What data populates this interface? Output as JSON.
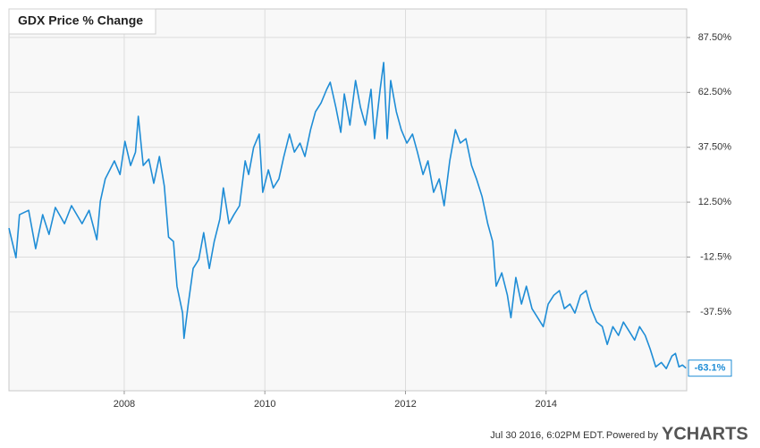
{
  "chart_data": {
    "type": "line",
    "title": "GDX Price % Change",
    "x": [
      2006.36,
      2006.46,
      2006.51,
      2006.64,
      2006.74,
      2006.84,
      2006.93,
      2007.02,
      2007.15,
      2007.25,
      2007.4,
      2007.5,
      2007.61,
      2007.66,
      2007.73,
      2007.86,
      2007.94,
      2008.01,
      2008.09,
      2008.16,
      2008.2,
      2008.27,
      2008.35,
      2008.42,
      2008.5,
      2008.57,
      2008.63,
      2008.7,
      2008.75,
      2008.83,
      2008.85,
      2008.91,
      2008.98,
      2009.06,
      2009.13,
      2009.21,
      2009.28,
      2009.36,
      2009.41,
      2009.49,
      2009.56,
      2009.64,
      2009.72,
      2009.77,
      2009.84,
      2009.92,
      2009.97,
      2010.05,
      2010.12,
      2010.2,
      2010.27,
      2010.35,
      2010.42,
      2010.5,
      2010.57,
      2010.65,
      2010.72,
      2010.8,
      2010.88,
      2010.93,
      2011.01,
      2011.08,
      2011.13,
      2011.21,
      2011.29,
      2011.36,
      2011.43,
      2011.51,
      2011.56,
      2011.64,
      2011.69,
      2011.74,
      2011.79,
      2011.87,
      2011.94,
      2012.02,
      2012.1,
      2012.17,
      2012.25,
      2012.32,
      2012.4,
      2012.48,
      2012.55,
      2012.63,
      2012.71,
      2012.78,
      2012.86,
      2012.94,
      2013.01,
      2013.09,
      2013.17,
      2013.24,
      2013.29,
      2013.37,
      2013.45,
      2013.5,
      2013.57,
      2013.65,
      2013.72,
      2013.8,
      2013.88,
      2013.96,
      2014.03,
      2014.11,
      2014.19,
      2014.26,
      2014.34,
      2014.41,
      2014.49,
      2014.57,
      2014.64,
      2014.72,
      2014.8,
      2014.87,
      2014.95,
      2015.03,
      2015.1,
      2015.18,
      2015.26,
      2015.33,
      2015.41,
      2015.48,
      2015.56,
      2015.64,
      2015.71,
      2015.79,
      2015.84,
      2015.89,
      2015.94,
      2015.99
    ],
    "series": [
      {
        "name": "GDX",
        "color": "#1f8dd6",
        "values": [
          0.7,
          -12.8,
          6.8,
          8.8,
          -8.7,
          6.8,
          -2.2,
          10.1,
          2.7,
          10.9,
          2.7,
          8.8,
          -4.6,
          12.9,
          23.1,
          31.3,
          25.1,
          40.2,
          29.2,
          35.3,
          51.6,
          29.2,
          32.1,
          21.1,
          33.3,
          19.8,
          -3.4,
          -5.4,
          -25.8,
          -38.0,
          -49.5,
          -34.0,
          -17.7,
          -13.6,
          -1.4,
          -17.7,
          -5.4,
          4.8,
          19.0,
          2.7,
          6.8,
          10.9,
          31.3,
          25.1,
          37.4,
          43.5,
          17.0,
          27.2,
          19.0,
          23.1,
          33.3,
          43.5,
          35.3,
          39.4,
          33.3,
          45.5,
          53.7,
          57.7,
          63.9,
          67.1,
          55.7,
          44.3,
          61.8,
          47.6,
          67.9,
          55.7,
          47.6,
          63.9,
          41.4,
          63.9,
          76.1,
          41.4,
          67.9,
          53.7,
          45.5,
          39.4,
          43.5,
          35.3,
          25.1,
          31.3,
          17.0,
          23.1,
          10.9,
          31.3,
          45.5,
          39.4,
          41.4,
          29.2,
          23.1,
          15.0,
          2.7,
          -5.4,
          -25.8,
          -19.7,
          -29.9,
          -40.1,
          -21.8,
          -33.9,
          -25.8,
          -36.0,
          -40.1,
          -44.2,
          -33.9,
          -29.9,
          -27.8,
          -36.0,
          -33.9,
          -38.0,
          -29.9,
          -27.8,
          -36.0,
          -42.1,
          -44.2,
          -52.3,
          -44.2,
          -48.2,
          -42.1,
          -46.2,
          -50.3,
          -44.2,
          -48.2,
          -54.3,
          -62.5,
          -60.5,
          -63.3,
          -57.6,
          -56.4,
          -62.5,
          -61.7,
          -63.1
        ],
        "value_labels": [
          null,
          null,
          null,
          null,
          null,
          null,
          null,
          null,
          null,
          null,
          null,
          null,
          null,
          null,
          null,
          null,
          null,
          null,
          null,
          null,
          null,
          null,
          null,
          null,
          null,
          null,
          null,
          null,
          null,
          null,
          null,
          null,
          null,
          null,
          null,
          null,
          null,
          null,
          null,
          null,
          null,
          null,
          null,
          null,
          null,
          null,
          null,
          null,
          null,
          null,
          null,
          null,
          null,
          null,
          null,
          null,
          null,
          null,
          null,
          null,
          null,
          null,
          null,
          null,
          null,
          null,
          null,
          null,
          null,
          null,
          null,
          null,
          null,
          null,
          null,
          null,
          null,
          null,
          null,
          null,
          null,
          null,
          null,
          null,
          null,
          null,
          null,
          null,
          null,
          null,
          null,
          null,
          null,
          null,
          null,
          null,
          null,
          null,
          null,
          null,
          null,
          null,
          null,
          null,
          null,
          null,
          null,
          null,
          null,
          null,
          null,
          null,
          null,
          null,
          null,
          null,
          null,
          null,
          null,
          null,
          null,
          null,
          null,
          null,
          null,
          null,
          null,
          null,
          null,
          "-63.1%"
        ]
      }
    ],
    "xlim": [
      2006.36,
      2016.0
    ],
    "xticks": [
      2008,
      2010,
      2012,
      2014
    ],
    "ylim": [
      -73.4,
      100.5
    ],
    "yticks": [
      {
        "value": 87.5,
        "label": "87.50%"
      },
      {
        "value": 62.5,
        "label": "62.50%"
      },
      {
        "value": 37.5,
        "label": "37.50%"
      },
      {
        "value": 12.5,
        "label": "12.50%"
      },
      {
        "value": -12.5,
        "label": "-12.5%"
      },
      {
        "value": -37.5,
        "label": "-37.5%"
      }
    ],
    "grid": true,
    "footer": {
      "timestamp": "Jul 30 2016, 6:02PM EDT.",
      "powered_by": "Powered by",
      "brand": "YCHARTS"
    }
  }
}
